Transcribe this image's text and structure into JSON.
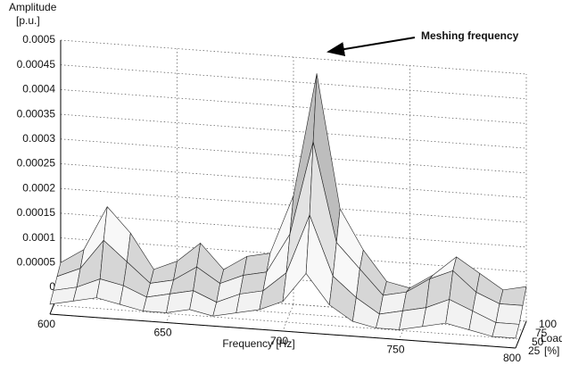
{
  "chart_data": {
    "type": "surface3d",
    "annotation": "Meshing frequency",
    "xlabel": "Frequency [Hz]",
    "zlabel": [
      "Amplitude",
      "[p.u.]"
    ],
    "depthlabel": [
      "Load",
      "[%]"
    ],
    "x": [
      600,
      610,
      620,
      630,
      640,
      650,
      660,
      670,
      680,
      690,
      700,
      710,
      720,
      730,
      740,
      750,
      760,
      770,
      780,
      790,
      800
    ],
    "depth": [
      25,
      50,
      75,
      100
    ],
    "z": [
      [
        2e-05,
        3e-05,
        4e-05,
        3e-05,
        2e-05,
        2e-05,
        3e-05,
        2e-05,
        3e-05,
        4e-05,
        6e-05,
        0.00012,
        6e-05,
        3e-05,
        2e-05,
        2e-05,
        3e-05,
        4e-05,
        3e-05,
        2e-05,
        2e-05
      ],
      [
        3e-05,
        4e-05,
        6e-05,
        5e-05,
        3e-05,
        4e-05,
        5e-05,
        3e-05,
        5e-05,
        6e-05,
        0.0001,
        0.00022,
        0.0001,
        6e-05,
        3e-05,
        4e-05,
        5e-05,
        7e-05,
        5e-05,
        3e-05,
        3e-05
      ],
      [
        4e-05,
        6e-05,
        0.00012,
        8e-05,
        4e-05,
        5e-05,
        8e-05,
        5e-05,
        7e-05,
        8e-05,
        0.00016,
        0.00035,
        0.00015,
        0.0001,
        5e-05,
        6e-05,
        9e-05,
        0.00011,
        7e-05,
        5e-05,
        5e-05
      ],
      [
        5e-05,
        8e-05,
        0.00017,
        0.00012,
        5e-05,
        7e-05,
        0.00011,
        6e-05,
        9e-05,
        0.0001,
        0.00022,
        0.00047,
        0.0002,
        0.00012,
        6e-05,
        5e-05,
        8e-05,
        0.00012,
        9e-05,
        6e-05,
        7e-05
      ]
    ],
    "xlim": [
      600,
      800
    ],
    "xticks": [
      600,
      650,
      700,
      750,
      800
    ],
    "depthlim": [
      25,
      100
    ],
    "depthticks": [
      25,
      50,
      75,
      100
    ],
    "zlim": [
      0,
      0.0005
    ],
    "zticks": [
      0,
      5e-05,
      0.0001,
      0.00015,
      0.0002,
      0.00025,
      0.0003,
      0.00035,
      0.0004,
      0.00045,
      0.0005
    ],
    "grid": true,
    "band_colors": [
      "#f2f2f2",
      "#d6d6d6",
      "#f8f8f8",
      "#9a9a9a",
      "#e2e2e2",
      "#bdbdbd",
      "#f0f0f0",
      "#555555",
      "#b5b5b5",
      "#333333"
    ]
  }
}
